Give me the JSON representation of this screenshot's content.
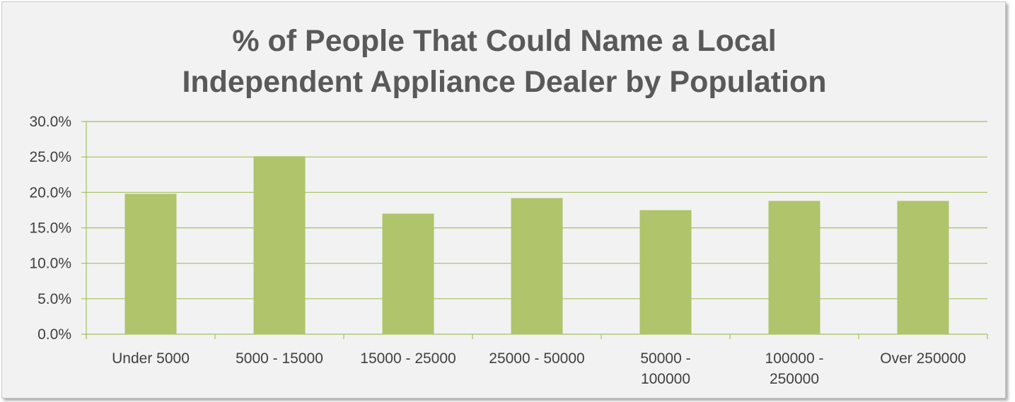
{
  "chart_data": {
    "type": "bar",
    "title": "% of People That Could Name a Local Independent Appliance Dealer by Population",
    "title_lines": [
      "% of People That Could Name a Local",
      "Independent Appliance Dealer by Population"
    ],
    "categories": [
      "Under 5000",
      "5000 - 15000",
      "15000 - 25000",
      "25000 - 50000",
      "50000 - 100000",
      "100000 - 250000",
      "Over 250000"
    ],
    "category_label_lines": [
      [
        "Under 5000"
      ],
      [
        "5000 - 15000"
      ],
      [
        "15000 - 25000"
      ],
      [
        "25000 - 50000"
      ],
      [
        "50000 -",
        "100000"
      ],
      [
        "100000 -",
        "250000"
      ],
      [
        "Over 250000"
      ]
    ],
    "values": [
      19.8,
      25.1,
      17.0,
      19.2,
      17.5,
      18.8,
      18.8
    ],
    "ylim": [
      0,
      30
    ],
    "yticks": [
      "0.0%",
      "5.0%",
      "10.0%",
      "15.0%",
      "20.0%",
      "25.0%",
      "30.0%"
    ],
    "ytick_values": [
      0,
      5,
      10,
      15,
      20,
      25,
      30
    ],
    "xlabel": "",
    "ylabel": "",
    "grid": true,
    "legend": "none",
    "bar_color": "#afc46b",
    "grid_color": "#a4c060",
    "background_color": "#f2f2f2"
  }
}
